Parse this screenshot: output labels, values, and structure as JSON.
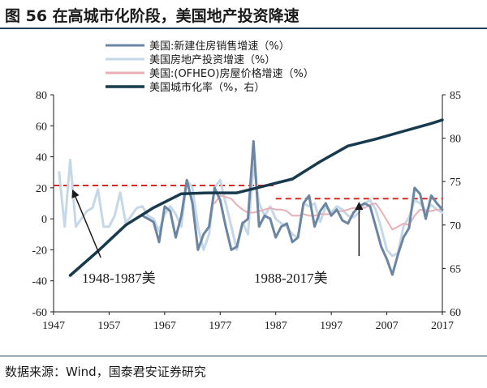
{
  "figure": {
    "title": "图 56 在高城市化阶段，美国地产投资降速",
    "source": "数据来源：Wind，国泰君安证券研究"
  },
  "chart_data": {
    "type": "line",
    "x_ticks": [
      "1947",
      "1957",
      "1967",
      "1977",
      "1987",
      "1997",
      "2007",
      "2017"
    ],
    "xlim": [
      1947,
      2017
    ],
    "y_left": {
      "lim": [
        -60,
        80
      ],
      "ticks": [
        "-60",
        "-40",
        "-20",
        "0",
        "20",
        "40",
        "60",
        "80"
      ]
    },
    "y_right": {
      "lim": [
        60,
        85
      ],
      "ticks": [
        "60",
        "65",
        "70",
        "75",
        "80",
        "85"
      ]
    },
    "series": [
      {
        "name": "美国:新建住房销售增速（%）",
        "axis": "left",
        "color": "#6b86a3",
        "width": 3,
        "x": [
          1963,
          1964,
          1965,
          1966,
          1967,
          1968,
          1969,
          1970,
          1971,
          1972,
          1973,
          1974,
          1975,
          1976,
          1977,
          1978,
          1979,
          1980,
          1981,
          1982,
          1983,
          1984,
          1985,
          1986,
          1987,
          1988,
          1989,
          1990,
          1991,
          1992,
          1993,
          1994,
          1995,
          1996,
          1997,
          1998,
          1999,
          2000,
          2001,
          2002,
          2003,
          2004,
          2005,
          2006,
          2007,
          2008,
          2009,
          2010,
          2011,
          2012,
          2013,
          2014,
          2015,
          2016,
          2017
        ],
        "y": [
          2,
          0,
          -2,
          -15,
          8,
          5,
          -12,
          2,
          25,
          10,
          -20,
          -10,
          -5,
          20,
          12,
          -5,
          -20,
          -18,
          -3,
          0,
          50,
          -5,
          2,
          0,
          -12,
          -5,
          -3,
          -15,
          -12,
          10,
          15,
          -5,
          5,
          10,
          2,
          6,
          -1,
          -3,
          4,
          8,
          10,
          8,
          -5,
          -18,
          -26,
          -36,
          -23,
          -12,
          -6,
          20,
          16,
          0,
          15,
          10,
          6
        ]
      },
      {
        "name": "美国房地产投资增速（%）",
        "axis": "left",
        "color": "#c6d8e8",
        "width": 3,
        "x": [
          1948,
          1949,
          1950,
          1951,
          1952,
          1953,
          1954,
          1955,
          1956,
          1957,
          1958,
          1959,
          1960,
          1961,
          1962,
          1963,
          1964,
          1965,
          1966,
          1967,
          1968,
          1969,
          1970,
          1971,
          1972,
          1973,
          1974,
          1975,
          1976,
          1977,
          1978,
          1979,
          1980,
          1981,
          1982,
          1983,
          1984,
          1985,
          1986,
          1987,
          1988,
          1989,
          1990,
          1991,
          1992,
          1993,
          1994,
          1995,
          1996,
          1997,
          1998,
          1999,
          2000,
          2001,
          2002,
          2003,
          2004,
          2005,
          2006,
          2007,
          2008,
          2009,
          2010,
          2011,
          2012,
          2013,
          2014,
          2015,
          2016,
          2017
        ],
        "y": [
          30,
          -5,
          38,
          -5,
          0,
          5,
          7,
          19,
          -5,
          -5,
          2,
          17,
          -3,
          2,
          7,
          8,
          2,
          0,
          -8,
          3,
          8,
          3,
          -5,
          25,
          20,
          -5,
          -20,
          -10,
          20,
          25,
          10,
          -5,
          -20,
          -2,
          -10,
          35,
          10,
          2,
          8,
          0,
          -3,
          -5,
          -10,
          -12,
          10,
          8,
          10,
          -2,
          8,
          4,
          8,
          6,
          2,
          1,
          4,
          10,
          12,
          6,
          -6,
          -20,
          -24,
          -22,
          -5,
          1,
          12,
          10,
          5,
          9,
          6,
          4
        ]
      },
      {
        "name": "美国:(OFHEO)房屋价格增速（%）",
        "axis": "left",
        "color": "#e8b0b6",
        "width": 2,
        "x": [
          1976,
          1977,
          1978,
          1979,
          1980,
          1981,
          1982,
          1983,
          1984,
          1985,
          1986,
          1987,
          1988,
          1989,
          1990,
          1991,
          1992,
          1993,
          1994,
          1995,
          1996,
          1997,
          1998,
          1999,
          2000,
          2001,
          2002,
          2003,
          2004,
          2005,
          2006,
          2007,
          2008,
          2009,
          2010,
          2011,
          2012,
          2013,
          2014,
          2015,
          2016,
          2017
        ],
        "y": [
          10,
          15,
          14,
          13,
          9,
          6,
          4,
          4,
          5,
          6,
          7,
          6,
          6,
          5,
          2,
          2,
          3,
          2,
          2,
          3,
          3,
          3,
          5,
          5,
          6,
          7,
          7,
          7,
          9,
          10,
          5,
          -1,
          -7,
          -5,
          -3,
          -4,
          2,
          6,
          5,
          5,
          6,
          6
        ]
      },
      {
        "name": "美国城市化率（%，右）",
        "axis": "right",
        "color": "#173a4d",
        "width": 3.5,
        "x": [
          1950,
          1955,
          1960,
          1965,
          1970,
          1975,
          1980,
          1985,
          1990,
          1995,
          2000,
          2005,
          2010,
          2015,
          2017
        ],
        "y": [
          64.2,
          67,
          70,
          72,
          73.6,
          73.7,
          73.7,
          74.5,
          75.3,
          77.3,
          79.1,
          79.9,
          80.8,
          81.7,
          82.1
        ]
      }
    ],
    "reference_lines": [
      {
        "axis": "left",
        "x_range": [
          1947,
          1987
        ],
        "y": 21.5,
        "color": "#d42a24"
      },
      {
        "axis": "left",
        "x_range": [
          1987,
          2017
        ],
        "y": 13,
        "color": "#d42a24"
      }
    ],
    "annotations": [
      {
        "text": "1948-1987美",
        "arrow_from": [
          1955.5,
          -25
        ],
        "arrow_to": [
          1950.5,
          18
        ]
      },
      {
        "text": "1988-2017美",
        "arrow_from": [
          2002,
          -24
        ],
        "arrow_to": [
          2002,
          10
        ]
      }
    ],
    "legend_position": "top-left"
  }
}
